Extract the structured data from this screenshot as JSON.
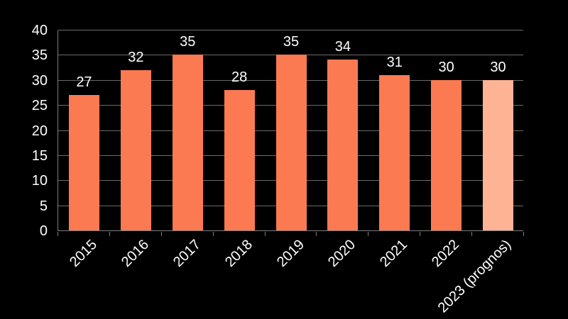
{
  "chart_data": {
    "type": "bar",
    "title": "",
    "xlabel": "",
    "ylabel": "",
    "categories": [
      "2015",
      "2016",
      "2017",
      "2018",
      "2019",
      "2020",
      "2021",
      "2022",
      "2023 (prognos)"
    ],
    "values": [
      27,
      32,
      35,
      28,
      35,
      34,
      31,
      30,
      30
    ],
    "value_labels": [
      "27",
      "32",
      "35",
      "28",
      "35",
      "34",
      "31",
      "30",
      "30"
    ],
    "yticks": [
      0,
      5,
      10,
      15,
      20,
      25,
      30,
      35,
      40
    ],
    "ylim": [
      0,
      40
    ],
    "grid": "horizontal",
    "legend": "none",
    "forecast_bar_index": 8
  },
  "style": {
    "background_color": "#000000",
    "text_color": "#FFFFFF",
    "bar_color": "#FC7A52",
    "forecast_bar_color": "#FDB394",
    "gridline_color": "#6B6B6B",
    "axis_color": "#7D7D7D"
  }
}
